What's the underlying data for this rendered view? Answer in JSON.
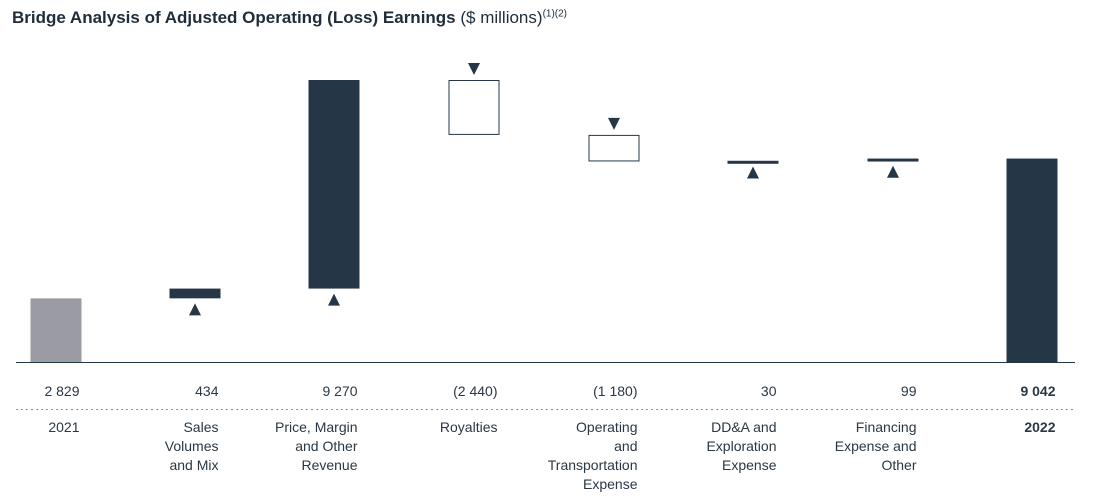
{
  "title": {
    "main": "Bridge Analysis of Adjusted Operating (Loss) Earnings",
    "unit": "($ millions)",
    "footnotes": "(1)(2)"
  },
  "colors": {
    "total_start": "#9a9ba3",
    "increase": "#253746",
    "decrease_fill": "#ffffff",
    "decrease_stroke": "#253746",
    "total_end": "#253746",
    "baseline": "#253746",
    "divider": "#8a9099"
  },
  "chart_data": {
    "type": "bar",
    "subtype": "waterfall",
    "categories": [
      "2021",
      "Sales Volumes and Mix",
      "Price, Margin and Other Revenue",
      "Royalties",
      "Operating and Transportation Expense",
      "DD&A and Exploration Expense",
      "Financing Expense and Other",
      "2022"
    ],
    "category_lines": [
      [
        "2021"
      ],
      [
        "Sales",
        "Volumes",
        "and Mix"
      ],
      [
        "Price, Margin",
        "and Other",
        "Revenue"
      ],
      [
        "Royalties"
      ],
      [
        "Operating",
        "and",
        "Transportation",
        "Expense"
      ],
      [
        "DD&A and",
        "Exploration",
        "Expense"
      ],
      [
        "Financing",
        "Expense and",
        "Other"
      ],
      [
        "2022"
      ]
    ],
    "values": [
      2829,
      434,
      9270,
      -2440,
      -1180,
      30,
      99,
      9042
    ],
    "value_labels": [
      "2 829",
      "434",
      "9 270",
      "(2 440)",
      "(1 180)",
      "30",
      "99",
      "9 042"
    ],
    "kinds": [
      "total",
      "increase",
      "increase",
      "decrease",
      "decrease",
      "increase",
      "increase",
      "total"
    ],
    "arrows": [
      "none",
      "up",
      "up",
      "down",
      "down",
      "up",
      "up",
      "none"
    ],
    "bold": [
      false,
      false,
      false,
      false,
      false,
      false,
      false,
      true
    ],
    "grid": false,
    "legend": "none"
  }
}
